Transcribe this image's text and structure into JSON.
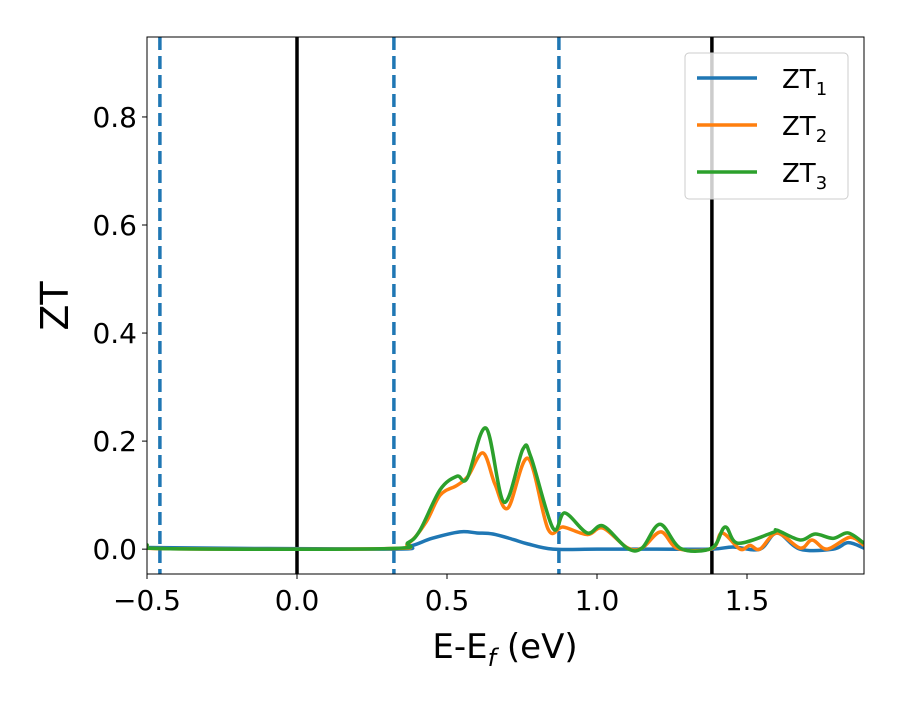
{
  "chart_data": {
    "type": "line",
    "xlabel": "E-E",
    "xlabel_sub": "f",
    "xlabel_unit": " (eV)",
    "ylabel": "ZT",
    "xlim": [
      -0.5,
      1.89
    ],
    "ylim": [
      -0.046,
      0.948
    ],
    "xticks": [
      -0.5,
      0.0,
      0.5,
      1.0,
      1.5
    ],
    "xtick_labels": [
      "−0.5",
      "0.0",
      "0.5",
      "1.0",
      "1.5"
    ],
    "yticks": [
      0.0,
      0.2,
      0.4,
      0.6,
      0.8
    ],
    "ytick_labels": [
      "0.0",
      "0.2",
      "0.4",
      "0.6",
      "0.8"
    ],
    "grid": false,
    "legend_position": "top-right",
    "vlines_solid": [
      0.0,
      1.383
    ],
    "vlines_dashed": [
      -0.457,
      0.323,
      0.873
    ],
    "vline_solid_color": "#000000",
    "vline_dashed_color": "#1f77b4",
    "series": [
      {
        "name": "ZT",
        "sub": "1",
        "color": "#1f77b4",
        "x": [
          -0.5,
          0.3,
          0.38,
          0.45,
          0.543,
          0.6,
          0.653,
          0.72,
          0.767,
          0.853,
          1.0,
          1.2,
          1.383,
          1.453,
          1.543,
          1.6,
          1.677,
          1.787,
          1.837,
          1.89
        ],
        "y": [
          0.003,
          0.0,
          0.006,
          0.02,
          0.032,
          0.03,
          0.028,
          0.018,
          0.01,
          0.0,
          0.0,
          0.0,
          0.0,
          0.004,
          0.0,
          0.03,
          0.0,
          0.0,
          0.012,
          0.002
        ]
      },
      {
        "name": "ZT",
        "sub": "2",
        "color": "#ff7f0e",
        "x": [
          -0.5,
          -0.45,
          0.3,
          0.37,
          0.43,
          0.477,
          0.533,
          0.57,
          0.62,
          0.66,
          0.703,
          0.77,
          0.837,
          0.887,
          0.967,
          1.02,
          1.1,
          1.15,
          1.213,
          1.27,
          1.383,
          1.417,
          1.477,
          1.51,
          1.543,
          1.6,
          1.677,
          1.717,
          1.767,
          1.843,
          1.89
        ],
        "y": [
          0.007,
          0.001,
          0.001,
          0.01,
          0.05,
          0.1,
          0.118,
          0.135,
          0.178,
          0.12,
          0.076,
          0.168,
          0.037,
          0.041,
          0.027,
          0.039,
          0.003,
          0.002,
          0.032,
          0.001,
          0.001,
          0.03,
          0.0,
          0.007,
          0.0,
          0.03,
          0.002,
          0.017,
          0.0,
          0.022,
          0.007
        ]
      },
      {
        "name": "ZT",
        "sub": "3",
        "color": "#2ca02c",
        "x": [
          -0.5,
          -0.45,
          0.3,
          0.37,
          0.41,
          0.477,
          0.533,
          0.567,
          0.63,
          0.69,
          0.753,
          0.78,
          0.853,
          0.893,
          0.967,
          1.02,
          1.1,
          1.15,
          1.21,
          1.28,
          1.383,
          1.427,
          1.47,
          1.587,
          1.6,
          1.677,
          1.727,
          1.787,
          1.837,
          1.89
        ],
        "y": [
          0.008,
          0.001,
          0.001,
          0.012,
          0.035,
          0.11,
          0.135,
          0.131,
          0.224,
          0.087,
          0.185,
          0.17,
          0.039,
          0.067,
          0.03,
          0.043,
          0.002,
          0.002,
          0.046,
          0.001,
          0.002,
          0.041,
          0.011,
          0.031,
          0.035,
          0.017,
          0.028,
          0.02,
          0.03,
          0.011
        ]
      }
    ]
  }
}
